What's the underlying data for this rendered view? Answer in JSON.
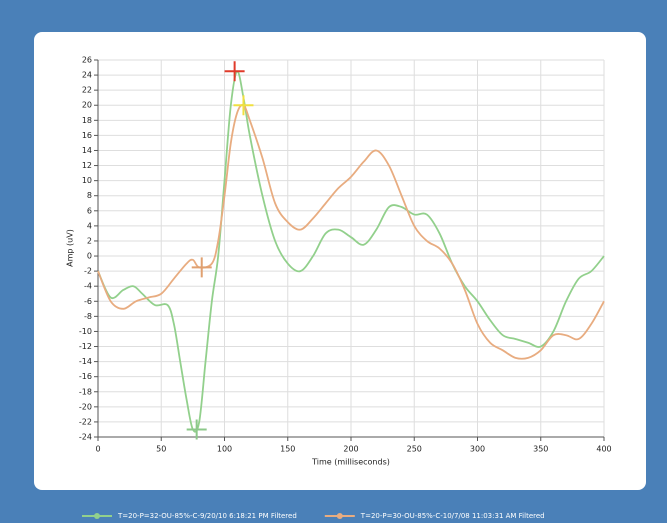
{
  "chart_data": {
    "type": "line",
    "x_label": "Time (milliseconds)",
    "y_label": "Amp (uV)",
    "xlim": [
      0,
      400
    ],
    "xticks": [
      0,
      50,
      100,
      150,
      200,
      250,
      300,
      350,
      400
    ],
    "ylim": [
      -24,
      26
    ],
    "yticks": [
      -24,
      -22,
      -20,
      -18,
      -16,
      -14,
      -12,
      -10,
      -8,
      -6,
      -4,
      -2,
      0,
      2,
      4,
      6,
      8,
      10,
      12,
      14,
      16,
      18,
      20,
      22,
      24,
      26
    ],
    "grid": true,
    "series": [
      {
        "name": "T=20-P=32-OU-85%-C-9/20/10 6:18:21 PM Filtered",
        "color": "#92d08c",
        "x": [
          0,
          10,
          20,
          28,
          35,
          45,
          55,
          60,
          65,
          70,
          75,
          80,
          85,
          90,
          95,
          100,
          105,
          110,
          115,
          120,
          130,
          140,
          150,
          160,
          170,
          180,
          190,
          200,
          210,
          220,
          230,
          240,
          250,
          260,
          270,
          280,
          290,
          300,
          310,
          320,
          330,
          340,
          350,
          360,
          370,
          380,
          390,
          400
        ],
        "values": [
          -2,
          -5.5,
          -4.5,
          -4,
          -5,
          -6.5,
          -6.5,
          -9,
          -14,
          -19,
          -23,
          -22,
          -14,
          -6,
          0,
          10,
          20,
          24.5,
          21,
          16,
          8,
          2,
          -1,
          -2,
          0,
          3,
          3.5,
          2.5,
          1.5,
          3.5,
          6.5,
          6.5,
          5.5,
          5.5,
          3,
          -1,
          -4,
          -6,
          -8.5,
          -10.5,
          -11,
          -11.5,
          -12,
          -10,
          -6,
          -3,
          -2,
          0
        ]
      },
      {
        "name": "T=20-P=30-OU-85%-C-10/7/08 11:03:31 AM Filtered",
        "color": "#e8ac80",
        "x": [
          0,
          10,
          20,
          30,
          40,
          50,
          60,
          70,
          75,
          80,
          90,
          95,
          100,
          105,
          110,
          115,
          120,
          130,
          140,
          150,
          160,
          170,
          180,
          190,
          200,
          210,
          220,
          230,
          240,
          250,
          260,
          270,
          280,
          290,
          300,
          310,
          320,
          330,
          340,
          350,
          360,
          370,
          380,
          390,
          400
        ],
        "values": [
          -2,
          -6,
          -7,
          -6,
          -5.5,
          -5,
          -3,
          -1,
          -0.5,
          -1.5,
          -1,
          2,
          8,
          15,
          19,
          20,
          18,
          13,
          7,
          4.5,
          3.5,
          5,
          7,
          9,
          10.5,
          12.5,
          14,
          12,
          8,
          4,
          2,
          1,
          -1,
          -4.5,
          -9,
          -11.5,
          -12.5,
          -13.5,
          -13.5,
          -12.5,
          -10.5,
          -10.5,
          -11,
          -9,
          -6
        ]
      }
    ],
    "markers": [
      {
        "x": 108,
        "y": 24.5,
        "color": "#e03a2a"
      },
      {
        "x": 115,
        "y": 20,
        "color": "#f0e040"
      },
      {
        "x": 78,
        "y": -23,
        "color": "#8cc88a"
      },
      {
        "x": 82,
        "y": -1.5,
        "color": "#e0a070"
      }
    ]
  }
}
